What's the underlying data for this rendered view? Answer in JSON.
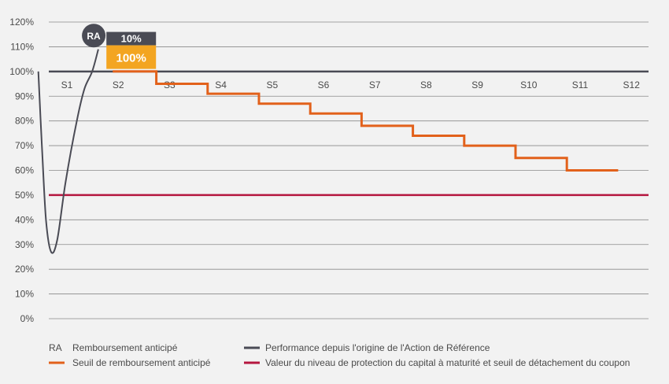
{
  "chart_data": {
    "type": "line",
    "y_ticks": [
      "0%",
      "10%",
      "20%",
      "30%",
      "40%",
      "50%",
      "60%",
      "70%",
      "80%",
      "90%",
      "100%",
      "110%",
      "120%"
    ],
    "ylim": [
      0,
      120
    ],
    "categories": [
      "S1",
      "S2",
      "S3",
      "S4",
      "S5",
      "S6",
      "S7",
      "S8",
      "S9",
      "S10",
      "S11",
      "S12"
    ],
    "reference_level": 100,
    "protection_level": 50,
    "redemption_thresholds": [
      {
        "from": 2,
        "to": 2.85,
        "value": 100
      },
      {
        "from": 2.85,
        "to": 3.85,
        "value": 95
      },
      {
        "from": 3.85,
        "to": 4.85,
        "value": 91
      },
      {
        "from": 4.85,
        "to": 5.85,
        "value": 87
      },
      {
        "from": 5.85,
        "to": 6.85,
        "value": 83
      },
      {
        "from": 6.85,
        "to": 7.85,
        "value": 78
      },
      {
        "from": 7.85,
        "to": 8.85,
        "value": 74
      },
      {
        "from": 8.85,
        "to": 9.85,
        "value": 70
      },
      {
        "from": 9.85,
        "to": 10.85,
        "value": 65
      },
      {
        "from": 10.85,
        "to": 11.85,
        "value": 60
      }
    ],
    "performance_path": [
      {
        "x": 0.55,
        "y": 100
      },
      {
        "x": 0.62,
        "y": 70
      },
      {
        "x": 0.7,
        "y": 40
      },
      {
        "x": 0.8,
        "y": 27
      },
      {
        "x": 0.92,
        "y": 32
      },
      {
        "x": 1.08,
        "y": 55
      },
      {
        "x": 1.3,
        "y": 80
      },
      {
        "x": 1.45,
        "y": 93
      },
      {
        "x": 1.6,
        "y": 100
      },
      {
        "x": 1.72,
        "y": 109
      }
    ],
    "annotation": {
      "marker": "RA",
      "coupon_label": "10%",
      "redemption_label": "100%",
      "at_category": "S2"
    },
    "colors": {
      "performance": "#4a4b55",
      "threshold": "#e2611b",
      "protection": "#b5163f",
      "coupon_box": "#4a4b55",
      "redemption_box": "#f3a521",
      "grid": "#8a8a8a"
    },
    "legend": [
      {
        "key": "RA",
        "label": "Remboursement anticipé"
      },
      {
        "key": "performance",
        "label": "Performance depuis l'origine de l'Action de Référence"
      },
      {
        "key": "threshold",
        "label": "Seuil de remboursement anticipé"
      },
      {
        "key": "protection",
        "label": "Valeur du niveau de protection du capital à maturité et seuil de détachement du coupon"
      }
    ]
  }
}
